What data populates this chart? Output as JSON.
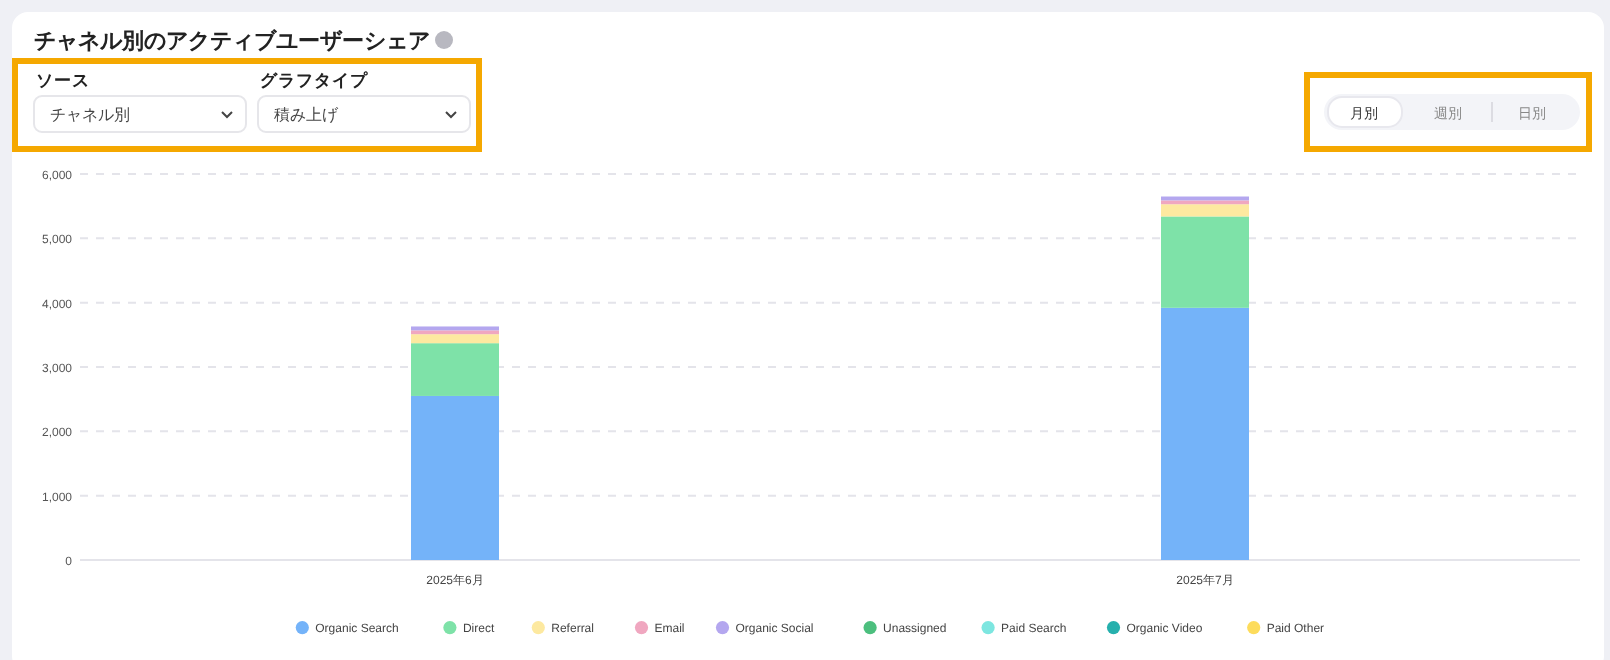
{
  "chart_data": {
    "type": "bar",
    "stacked": true,
    "title": "チャネル別のアクティブユーザーシェア",
    "annotations": [
      "ソース",
      "チャネル別",
      "グラフタイプ",
      "積み上げ",
      "月別",
      "週別",
      "日別"
    ],
    "categories": [
      "2025年6月",
      "2025年7月"
    ],
    "series": [
      {
        "name": "Organic Search",
        "color": "#74b3f9",
        "values": [
          2550,
          3920
        ]
      },
      {
        "name": "Direct",
        "color": "#7ee2a8",
        "values": [
          820,
          1420
        ]
      },
      {
        "name": "Referral",
        "color": "#fde9a0",
        "values": [
          140,
          190
        ]
      },
      {
        "name": "Email",
        "color": "#f0a7c0",
        "values": [
          60,
          60
        ]
      },
      {
        "name": "Organic Social",
        "color": "#b4a7ef",
        "values": [
          60,
          60
        ]
      },
      {
        "name": "Unassigned",
        "color": "#4cbf7e",
        "values": [
          0,
          0
        ]
      },
      {
        "name": "Paid Search",
        "color": "#7de6e0",
        "values": [
          0,
          0
        ]
      },
      {
        "name": "Organic Video",
        "color": "#26b0ad",
        "values": [
          0,
          0
        ]
      },
      {
        "name": "Paid Other",
        "color": "#fddc5c",
        "values": [
          0,
          0
        ]
      }
    ],
    "ylim": [
      0,
      6000
    ],
    "yticks": [
      0,
      {
        "value": 1000,
        "label": "1,000"
      },
      {
        "value": 2000,
        "label": "2,000"
      },
      {
        "value": 3000,
        "label": "3,000"
      },
      {
        "value": 4000,
        "label": "4,000"
      },
      {
        "value": 5000,
        "label": "5,000"
      },
      {
        "value": 6000,
        "label": "6,000"
      }
    ],
    "grid": "y",
    "legend": "bottom"
  }
}
